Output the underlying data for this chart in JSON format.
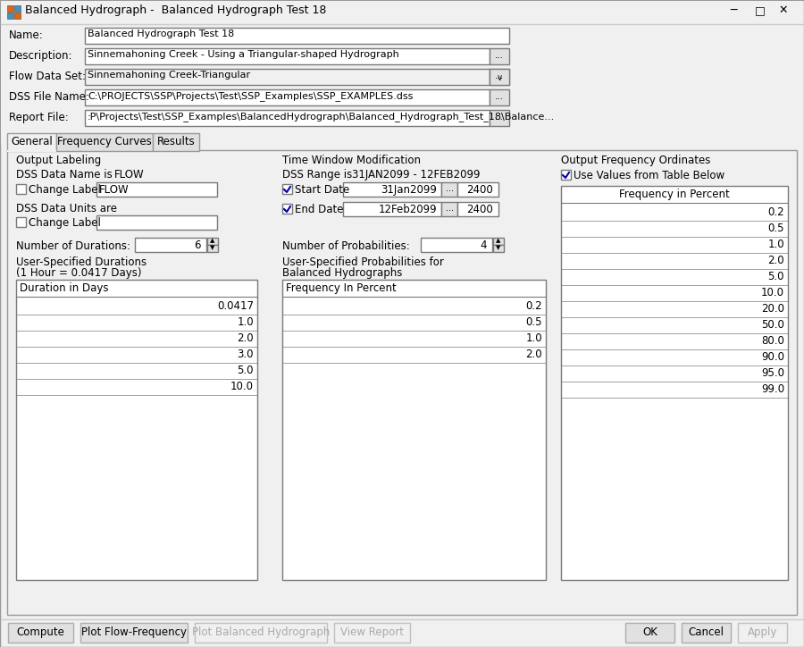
{
  "title_bar_text": "Balanced Hydrograph -  Balanced Hydrograph Test 18",
  "title_bar_bg": "#f0f0f0",
  "title_bar_text_color": "#000000",
  "title_bar_border": "#cccccc",
  "window_bg": "#f0f0f0",
  "window_border": "#999999",
  "content_bg": "#f0f0f0",
  "name_value": "Balanced Hydrograph Test 18",
  "description_value": "Sinnemahoning Creek - Using a Triangular-shaped Hydrograph",
  "flow_data_set": "Sinnemahoning Creek-Triangular",
  "dss_file": "C:\\PROJECTS\\SSP\\Projects\\Test\\SSP_Examples\\SSP_EXAMPLES.dss",
  "report_file": ":P\\Projects\\Test\\SSP_Examples\\BalancedHydrograph\\Balanced_Hydrograph_Test_18\\Balance...",
  "tabs": [
    "General",
    "Frequency Curves",
    "Results"
  ],
  "active_tab": "General",
  "dss_data_name": "FLOW",
  "change_label_text": "FLOW",
  "dss_range": "31JAN2099 - 12FEB2099",
  "start_date": "31Jan2099",
  "end_date": "12Feb2099",
  "time_2400": "2400",
  "num_probabilities": "4",
  "num_durations": "6",
  "duration_note": "(1 Hour = 0.0417 Days)",
  "duration_header": "Duration in Days",
  "duration_values": [
    "0.0417",
    "1.0",
    "2.0",
    "3.0",
    "5.0",
    "10.0"
  ],
  "freq_header": "Frequency In Percent",
  "freq_values": [
    "0.2",
    "0.5",
    "1.0",
    "2.0"
  ],
  "output_freq_header": "Frequency in Percent",
  "output_freq_values": [
    "0.2",
    "0.5",
    "1.0",
    "2.0",
    "5.0",
    "10.0",
    "20.0",
    "50.0",
    "80.0",
    "90.0",
    "95.0",
    "99.0"
  ],
  "buttons_bottom": [
    "Compute",
    "Plot Flow-Frequency",
    "Plot Balanced Hydrograph",
    "View Report"
  ],
  "buttons_bottom_active": [
    true,
    true,
    false,
    false
  ],
  "buttons_right": [
    "OK",
    "Cancel",
    "Apply"
  ],
  "buttons_right_active": [
    true,
    true,
    false
  ],
  "input_bg": "#ffffff",
  "input_bg_disabled": "#f0f0f0",
  "input_border": "#7a7a7a",
  "button_bg": "#e1e1e1",
  "button_bg_disabled": "#f0f0f0",
  "button_border": "#adadad",
  "button_border_disabled": "#c0c0c0",
  "tab_active_bg": "#f0f0f0",
  "tab_inactive_bg": "#e0e0e0",
  "tab_border": "#999999",
  "checkbox_border": "#7a7a7a",
  "checkbox_check_color": "#0000aa",
  "text_color": "#000000",
  "label_color": "#000000",
  "disabled_text": "#aaaaaa",
  "icon_color1": "#d4681c",
  "icon_color2": "#4a8fb5"
}
